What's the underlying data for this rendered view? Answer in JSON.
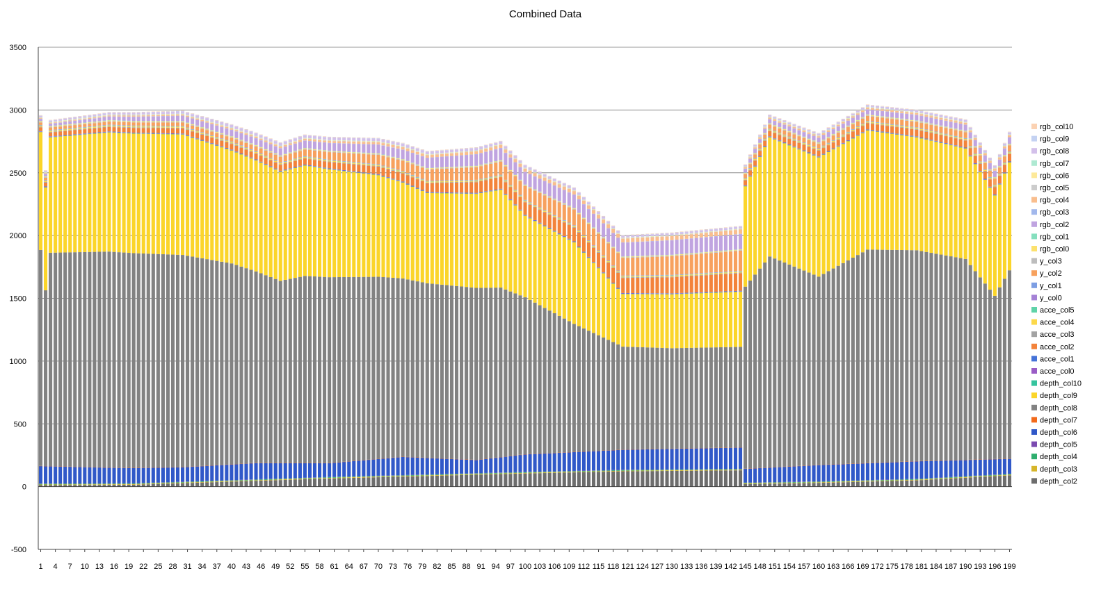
{
  "chart_data": {
    "type": "bar",
    "stacked": true,
    "title": "Combined Data",
    "xlabel": "",
    "ylabel": "",
    "ylim": [
      -500,
      3500
    ],
    "yticks": [
      -500,
      0,
      500,
      1000,
      1500,
      2000,
      2500,
      3000,
      3500
    ],
    "grid": true,
    "legend_position": "right",
    "x_range": [
      1,
      199
    ],
    "x_tick_labels": [
      "1",
      "4",
      "7",
      "10",
      "13",
      "16",
      "19",
      "22",
      "25",
      "28",
      "31",
      "34",
      "37",
      "40",
      "43",
      "46",
      "49",
      "52",
      "55",
      "58",
      "61",
      "64",
      "67",
      "70",
      "73",
      "76",
      "79",
      "82",
      "85",
      "88",
      "91",
      "94",
      "97",
      "100",
      "103",
      "106",
      "109",
      "112",
      "115",
      "118",
      "121",
      "124",
      "127",
      "130",
      "133",
      "136",
      "139",
      "142",
      "145",
      "148",
      "151",
      "154",
      "157",
      "160",
      "163",
      "166",
      "169",
      "172",
      "175",
      "178",
      "181",
      "184",
      "187",
      "190",
      "193",
      "196",
      "199"
    ],
    "interpolation": "piecewise-linear between listed x points; values estimated from the figure",
    "series": [
      {
        "name": "depth_col2",
        "color": "#6d6d6d",
        "points": [
          [
            1,
            12
          ],
          [
            20,
            15
          ],
          [
            40,
            40
          ],
          [
            60,
            65
          ],
          [
            80,
            85
          ],
          [
            100,
            105
          ],
          [
            120,
            122
          ],
          [
            144,
            130
          ],
          [
            145,
            20
          ],
          [
            160,
            30
          ],
          [
            180,
            50
          ],
          [
            199,
            90
          ]
        ]
      },
      {
        "name": "depth_col3",
        "color": "#d6b52a",
        "points": [
          [
            1,
            5
          ],
          [
            199,
            5
          ]
        ]
      },
      {
        "name": "depth_col4",
        "color": "#2fae6e",
        "points": [
          [
            1,
            5
          ],
          [
            199,
            5
          ]
        ]
      },
      {
        "name": "depth_col5",
        "color": "#7b4bb0",
        "points": [
          [
            1,
            2
          ],
          [
            199,
            2
          ]
        ]
      },
      {
        "name": "depth_col6",
        "color": "#3058c8",
        "points": [
          [
            1,
            140
          ],
          [
            15,
            125
          ],
          [
            30,
            115
          ],
          [
            45,
            130
          ],
          [
            60,
            110
          ],
          [
            75,
            145
          ],
          [
            90,
            105
          ],
          [
            100,
            140
          ],
          [
            120,
            160
          ],
          [
            144,
            170
          ],
          [
            145,
            110
          ],
          [
            160,
            130
          ],
          [
            180,
            140
          ],
          [
            199,
            120
          ]
        ]
      },
      {
        "name": "depth_col7",
        "color": "#f26a1b",
        "points": [
          [
            1,
            1
          ],
          [
            199,
            1
          ]
        ]
      },
      {
        "name": "depth_col8",
        "color": "#828282",
        "points": [
          [
            1,
            1720
          ],
          [
            2,
            1400
          ],
          [
            3,
            1700
          ],
          [
            15,
            1720
          ],
          [
            30,
            1690
          ],
          [
            40,
            1600
          ],
          [
            50,
            1450
          ],
          [
            55,
            1490
          ],
          [
            60,
            1480
          ],
          [
            70,
            1450
          ],
          [
            80,
            1390
          ],
          [
            90,
            1370
          ],
          [
            95,
            1350
          ],
          [
            100,
            1250
          ],
          [
            110,
            1020
          ],
          [
            120,
            820
          ],
          [
            130,
            800
          ],
          [
            144,
            800
          ],
          [
            145,
            1450
          ],
          [
            150,
            1680
          ],
          [
            160,
            1500
          ],
          [
            170,
            1700
          ],
          [
            180,
            1680
          ],
          [
            190,
            1600
          ],
          [
            196,
            1300
          ],
          [
            199,
            1500
          ]
        ]
      },
      {
        "name": "depth_col9",
        "color": "#fbd52a",
        "points": [
          [
            1,
            940
          ],
          [
            2,
            820
          ],
          [
            3,
            920
          ],
          [
            15,
            950
          ],
          [
            30,
            960
          ],
          [
            40,
            900
          ],
          [
            50,
            870
          ],
          [
            55,
            880
          ],
          [
            60,
            860
          ],
          [
            70,
            810
          ],
          [
            80,
            720
          ],
          [
            90,
            750
          ],
          [
            95,
            780
          ],
          [
            100,
            650
          ],
          [
            110,
            650
          ],
          [
            120,
            420
          ],
          [
            130,
            430
          ],
          [
            144,
            440
          ],
          [
            145,
            800
          ],
          [
            150,
            950
          ],
          [
            160,
            950
          ],
          [
            170,
            950
          ],
          [
            180,
            900
          ],
          [
            190,
            880
          ],
          [
            196,
            800
          ],
          [
            199,
            860
          ]
        ]
      },
      {
        "name": "depth_col10",
        "color": "#36c49e",
        "points": [
          [
            1,
            1
          ],
          [
            199,
            1
          ]
        ]
      },
      {
        "name": "acce_col0",
        "color": "#9a5cc6",
        "points": [
          [
            1,
            3
          ],
          [
            199,
            3
          ]
        ]
      },
      {
        "name": "acce_col1",
        "color": "#4573d8",
        "points": [
          [
            1,
            3
          ],
          [
            199,
            3
          ]
        ]
      },
      {
        "name": "acce_col2",
        "color": "#f3833b",
        "points": [
          [
            1,
            30
          ],
          [
            40,
            45
          ],
          [
            60,
            50
          ],
          [
            80,
            70
          ],
          [
            100,
            100
          ],
          [
            120,
            120
          ],
          [
            144,
            140
          ],
          [
            145,
            40
          ],
          [
            199,
            60
          ]
        ]
      },
      {
        "name": "acce_col3",
        "color": "#a3a3a3",
        "points": [
          [
            1,
            5
          ],
          [
            199,
            5
          ]
        ]
      },
      {
        "name": "acce_col4",
        "color": "#fcd94b",
        "points": [
          [
            1,
            8
          ],
          [
            199,
            8
          ]
        ]
      },
      {
        "name": "acce_col5",
        "color": "#5fd3a8",
        "points": [
          [
            1,
            2
          ],
          [
            199,
            2
          ]
        ]
      },
      {
        "name": "y_col0",
        "color": "#a582d6",
        "points": [
          [
            1,
            2
          ],
          [
            199,
            2
          ]
        ]
      },
      {
        "name": "y_col1",
        "color": "#7d9ee3",
        "points": [
          [
            1,
            2
          ],
          [
            199,
            2
          ]
        ]
      },
      {
        "name": "y_col2",
        "color": "#f7a15e",
        "points": [
          [
            1,
            20
          ],
          [
            40,
            30
          ],
          [
            60,
            60
          ],
          [
            80,
            90
          ],
          [
            100,
            110
          ],
          [
            120,
            140
          ],
          [
            144,
            160
          ],
          [
            145,
            30
          ],
          [
            199,
            50
          ]
        ]
      },
      {
        "name": "y_col3",
        "color": "#bdbdbd",
        "points": [
          [
            1,
            5
          ],
          [
            199,
            5
          ]
        ]
      },
      {
        "name": "rgb_col0",
        "color": "#fce16d",
        "points": [
          [
            1,
            5
          ],
          [
            199,
            5
          ]
        ]
      },
      {
        "name": "rgb_col1",
        "color": "#86dfbe",
        "points": [
          [
            1,
            2
          ],
          [
            199,
            2
          ]
        ]
      },
      {
        "name": "rgb_col2",
        "color": "#c0a4e0",
        "points": [
          [
            1,
            15
          ],
          [
            40,
            50
          ],
          [
            60,
            60
          ],
          [
            80,
            80
          ],
          [
            100,
            100
          ],
          [
            120,
            110
          ],
          [
            144,
            120
          ],
          [
            145,
            30
          ],
          [
            199,
            50
          ]
        ]
      },
      {
        "name": "rgb_col3",
        "color": "#a2b8ec",
        "points": [
          [
            1,
            2
          ],
          [
            199,
            2
          ]
        ]
      },
      {
        "name": "rgb_col4",
        "color": "#f9be8e",
        "points": [
          [
            1,
            5
          ],
          [
            40,
            10
          ],
          [
            80,
            20
          ],
          [
            120,
            30
          ],
          [
            144,
            35
          ],
          [
            145,
            10
          ],
          [
            199,
            15
          ]
        ]
      },
      {
        "name": "rgb_col5",
        "color": "#cccccc",
        "points": [
          [
            1,
            3
          ],
          [
            199,
            3
          ]
        ]
      },
      {
        "name": "rgb_col6",
        "color": "#fde99a",
        "points": [
          [
            1,
            3
          ],
          [
            199,
            3
          ]
        ]
      },
      {
        "name": "rgb_col7",
        "color": "#aee9d2",
        "points": [
          [
            1,
            2
          ],
          [
            199,
            2
          ]
        ]
      },
      {
        "name": "rgb_col8",
        "color": "#d3c0ea",
        "points": [
          [
            1,
            10
          ],
          [
            40,
            20
          ],
          [
            80,
            20
          ],
          [
            120,
            15
          ],
          [
            144,
            15
          ],
          [
            145,
            10
          ],
          [
            199,
            15
          ]
        ]
      },
      {
        "name": "rgb_col9",
        "color": "#c4d2f2",
        "points": [
          [
            1,
            3
          ],
          [
            199,
            3
          ]
        ]
      },
      {
        "name": "rgb_col10",
        "color": "#fbd2b3",
        "points": [
          [
            1,
            3
          ],
          [
            199,
            3
          ]
        ]
      }
    ]
  }
}
